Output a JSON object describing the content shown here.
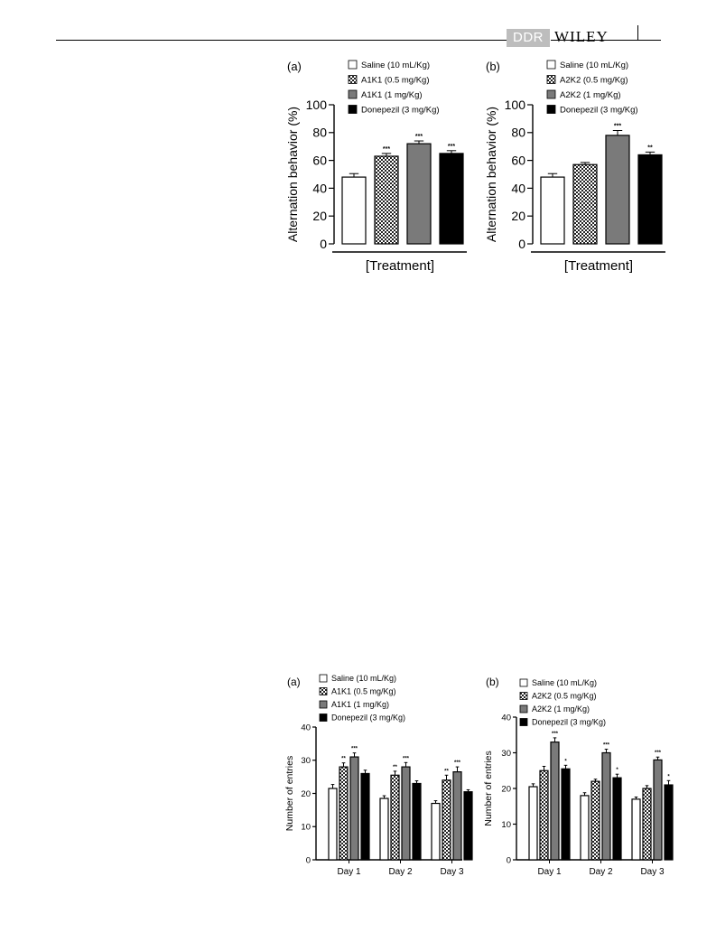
{
  "header": {
    "journal_badge": "DDR",
    "publisher": "WILEY"
  },
  "chart_data": [
    {
      "id": "fig1a",
      "panel_label": "(a)",
      "type": "bar",
      "categories": [
        ""
      ],
      "series": [
        {
          "name": "Saline (10 mL/Kg)",
          "values": [
            48
          ],
          "error": [
            2.5
          ],
          "sig": [
            ""
          ]
        },
        {
          "name": "A1K1 (0.5 mg/Kg)",
          "values": [
            63
          ],
          "error": [
            2
          ],
          "sig": [
            "***"
          ]
        },
        {
          "name": "A1K1 (1 mg/Kg)",
          "values": [
            72
          ],
          "error": [
            2
          ],
          "sig": [
            "***"
          ]
        },
        {
          "name": "Donepezil (3 mg/Kg)",
          "values": [
            65
          ],
          "error": [
            2
          ],
          "sig": [
            "***"
          ]
        }
      ],
      "xlabel": "[Treatment]",
      "ylabel": "Alternation behavior (%)",
      "ylim": [
        0,
        100
      ],
      "yticks": [
        0,
        20,
        40,
        60,
        80,
        100
      ],
      "grid": false,
      "legend_position": "top"
    },
    {
      "id": "fig1b",
      "panel_label": "(b)",
      "type": "bar",
      "categories": [
        ""
      ],
      "series": [
        {
          "name": "Saline (10 mL/Kg)",
          "values": [
            48
          ],
          "error": [
            2.5
          ],
          "sig": [
            ""
          ]
        },
        {
          "name": "A2K2 (0.5 mg/Kg)",
          "values": [
            57
          ],
          "error": [
            1.5
          ],
          "sig": [
            ""
          ]
        },
        {
          "name": "A2K2 (1 mg/Kg)",
          "values": [
            78
          ],
          "error": [
            3.5
          ],
          "sig": [
            "***"
          ]
        },
        {
          "name": "Donepezil (3 mg/Kg)",
          "values": [
            64
          ],
          "error": [
            2
          ],
          "sig": [
            "**"
          ]
        }
      ],
      "xlabel": "[Treatment]",
      "ylabel": "Alternation behavior (%)",
      "ylim": [
        0,
        100
      ],
      "yticks": [
        0,
        20,
        40,
        60,
        80,
        100
      ],
      "grid": false,
      "legend_position": "top"
    },
    {
      "id": "fig2a",
      "panel_label": "(a)",
      "type": "bar",
      "categories": [
        "Day 1",
        "Day 2",
        "Day 3"
      ],
      "series": [
        {
          "name": "Saline (10 mL/Kg)",
          "values": [
            21.5,
            18.5,
            17
          ],
          "error": [
            1.2,
            0.8,
            0.8
          ],
          "sig": [
            "",
            "",
            ""
          ]
        },
        {
          "name": "A1K1 (0.5 mg/Kg)",
          "values": [
            28,
            25.5,
            24
          ],
          "error": [
            1.2,
            1.2,
            1.5
          ],
          "sig": [
            "**",
            "**",
            "**"
          ]
        },
        {
          "name": "A1K1 (1 mg/Kg)",
          "values": [
            31,
            28,
            26.5
          ],
          "error": [
            1.2,
            1.3,
            1.5
          ],
          "sig": [
            "***",
            "***",
            "***"
          ]
        },
        {
          "name": "Donepezil (3 mg/Kg)",
          "values": [
            26,
            23,
            20.5
          ],
          "error": [
            1,
            0.8,
            0.6
          ],
          "sig": [
            "",
            "",
            ""
          ]
        }
      ],
      "xlabel": "",
      "ylabel": "Number of entries",
      "ylim": [
        0,
        40
      ],
      "yticks": [
        0,
        10,
        20,
        30,
        40
      ],
      "grid": false,
      "legend_position": "top"
    },
    {
      "id": "fig2b",
      "panel_label": "(b)",
      "type": "bar",
      "categories": [
        "Day 1",
        "Day 2",
        "Day 3"
      ],
      "series": [
        {
          "name": "Saline (10 mL/Kg)",
          "values": [
            20.5,
            18,
            17
          ],
          "error": [
            0.8,
            0.8,
            0.6
          ],
          "sig": [
            "",
            "",
            ""
          ]
        },
        {
          "name": "A2K2 (0.5 mg/Kg)",
          "values": [
            25,
            22,
            20
          ],
          "error": [
            1.2,
            0.6,
            0.8
          ],
          "sig": [
            "",
            "",
            ""
          ]
        },
        {
          "name": "A2K2 (1 mg/Kg)",
          "values": [
            33,
            30,
            28
          ],
          "error": [
            1.2,
            1,
            0.8
          ],
          "sig": [
            "***",
            "***",
            "***"
          ]
        },
        {
          "name": "Donepezil (3 mg/Kg)",
          "values": [
            25.5,
            23,
            21
          ],
          "error": [
            1,
            1,
            1.2
          ],
          "sig": [
            "*",
            "*",
            "*"
          ]
        }
      ],
      "xlabel": "",
      "ylabel": "Number of entries",
      "ylim": [
        0,
        40
      ],
      "yticks": [
        0,
        10,
        20,
        30,
        40
      ],
      "grid": false,
      "legend_position": "top"
    }
  ],
  "series_styles": {
    "names": [
      "saline",
      "low-dose",
      "high-dose",
      "donepezil"
    ],
    "fills": [
      "#ffffff",
      "checker",
      "#7a7a7a",
      "#000000"
    ],
    "stroke": "#000000"
  }
}
